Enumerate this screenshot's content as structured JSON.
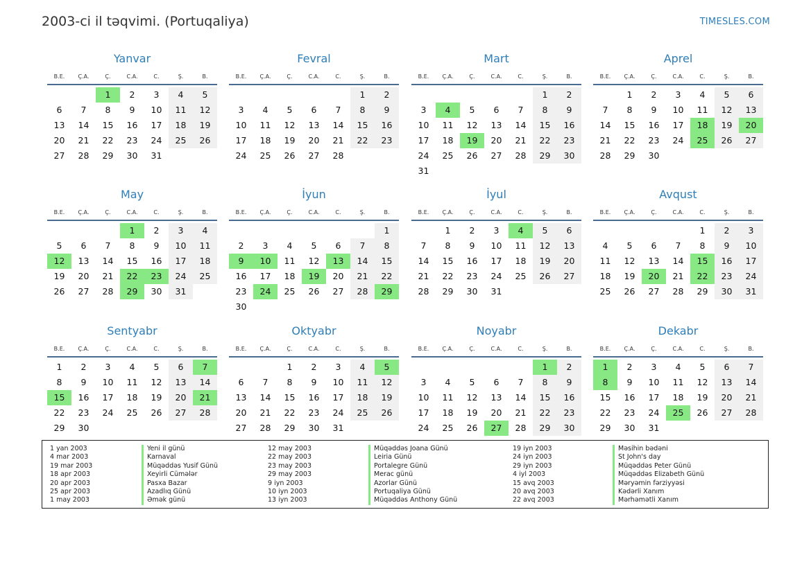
{
  "header": {
    "title": "2003-ci il təqvimi. (Portuqaliya)",
    "brand": "TIMESLES.COM"
  },
  "weekdays": [
    "B.E.",
    "Ç.A.",
    "Ç.",
    "C.A.",
    "C.",
    "Ş.",
    "B."
  ],
  "colors": {
    "accent": "#2e7eb8",
    "holiday": "#88e884",
    "weekend": "#f0f0f0",
    "rule": "#4a6b91"
  },
  "year": 2003,
  "months": [
    {
      "name": "Yanvar",
      "start_weekday": 2,
      "days": 31,
      "holidays": [
        1
      ]
    },
    {
      "name": "Fevral",
      "start_weekday": 5,
      "days": 28,
      "holidays": []
    },
    {
      "name": "Mart",
      "start_weekday": 5,
      "days": 31,
      "holidays": [
        4,
        19
      ]
    },
    {
      "name": "Aprel",
      "start_weekday": 1,
      "days": 30,
      "holidays": [
        18,
        20,
        25
      ]
    },
    {
      "name": "May",
      "start_weekday": 3,
      "days": 31,
      "holidays": [
        1,
        12,
        22,
        23,
        29
      ]
    },
    {
      "name": "İyun",
      "start_weekday": 6,
      "days": 30,
      "holidays": [
        9,
        10,
        13,
        19,
        24,
        29
      ]
    },
    {
      "name": "İyul",
      "start_weekday": 1,
      "days": 31,
      "holidays": [
        4
      ]
    },
    {
      "name": "Avqust",
      "start_weekday": 4,
      "days": 31,
      "holidays": [
        15,
        20,
        22
      ]
    },
    {
      "name": "Sentyabr",
      "start_weekday": 0,
      "days": 30,
      "holidays": [
        7,
        15,
        21
      ]
    },
    {
      "name": "Oktyabr",
      "start_weekday": 2,
      "days": 31,
      "holidays": [
        5
      ]
    },
    {
      "name": "Noyabr",
      "start_weekday": 5,
      "days": 30,
      "holidays": [
        1,
        27
      ]
    },
    {
      "name": "Dekabr",
      "start_weekday": 0,
      "days": 31,
      "holidays": [
        1,
        8,
        25
      ]
    }
  ],
  "holiday_list": [
    [
      {
        "date": "1 yan 2003",
        "name": "Yeni il günü"
      },
      {
        "date": "4 mar 2003",
        "name": "Karnaval"
      },
      {
        "date": "19 mar 2003",
        "name": "Müqəddəs Yusif Günü"
      },
      {
        "date": "18 apr 2003",
        "name": "Xeyirli Cümələr"
      },
      {
        "date": "20 apr 2003",
        "name": "Pasxa Bazar"
      },
      {
        "date": "25 apr 2003",
        "name": "Azadlıq Günü"
      },
      {
        "date": "1 may 2003",
        "name": "Əmək günü"
      }
    ],
    [
      {
        "date": "12 may 2003",
        "name": "Müqəddəs Joana Günü"
      },
      {
        "date": "22 may 2003",
        "name": "Leiria Günü"
      },
      {
        "date": "23 may 2003",
        "name": "Portalegre Günü"
      },
      {
        "date": "29 may 2003",
        "name": "Merac günü"
      },
      {
        "date": "9 iyn 2003",
        "name": "Azorlar Günü"
      },
      {
        "date": "10 iyn 2003",
        "name": "Portuqaliya Günü"
      },
      {
        "date": "13 iyn 2003",
        "name": "Müqəddəs Anthony Günü"
      }
    ],
    [
      {
        "date": "19 iyn 2003",
        "name": "Məsihin bədəni"
      },
      {
        "date": "24 iyn 2003",
        "name": "St John's day"
      },
      {
        "date": "29 iyn 2003",
        "name": "Müqəddəs Peter Günü"
      },
      {
        "date": "4 iyl 2003",
        "name": "Müqəddəs Elizabeth Günü"
      },
      {
        "date": "15 avq 2003",
        "name": "Məryəmin fərziyyəsi"
      },
      {
        "date": "20 avq 2003",
        "name": "Kədərli Xanım"
      },
      {
        "date": "22 avq 2003",
        "name": "Mərhəmətli Xanım"
      }
    ]
  ]
}
